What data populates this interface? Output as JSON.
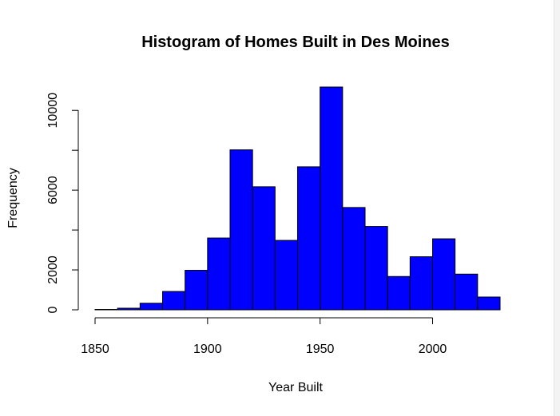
{
  "chart_data": {
    "type": "bar",
    "title": "Histogram of Homes Built in Des Moines",
    "xlabel": "Year Built",
    "ylabel": "Frequency",
    "bin_width": 10,
    "bins": [
      {
        "start": 1850,
        "end": 1860,
        "count": 20
      },
      {
        "start": 1860,
        "end": 1870,
        "count": 80
      },
      {
        "start": 1870,
        "end": 1880,
        "count": 330
      },
      {
        "start": 1880,
        "end": 1890,
        "count": 920
      },
      {
        "start": 1890,
        "end": 1900,
        "count": 1980
      },
      {
        "start": 1900,
        "end": 1910,
        "count": 3600
      },
      {
        "start": 1910,
        "end": 1920,
        "count": 8020
      },
      {
        "start": 1920,
        "end": 1930,
        "count": 6170
      },
      {
        "start": 1930,
        "end": 1940,
        "count": 3480
      },
      {
        "start": 1940,
        "end": 1950,
        "count": 7170
      },
      {
        "start": 1950,
        "end": 1960,
        "count": 11170
      },
      {
        "start": 1960,
        "end": 1970,
        "count": 5130
      },
      {
        "start": 1970,
        "end": 1980,
        "count": 4180
      },
      {
        "start": 1980,
        "end": 1990,
        "count": 1670
      },
      {
        "start": 1990,
        "end": 2000,
        "count": 2660
      },
      {
        "start": 2000,
        "end": 2010,
        "count": 3560
      },
      {
        "start": 2010,
        "end": 2020,
        "count": 1790
      },
      {
        "start": 2020,
        "end": 2030,
        "count": 640
      }
    ],
    "xlim": [
      1850,
      2030
    ],
    "ylim": [
      0,
      11170
    ],
    "x_ticks": [
      1850,
      1900,
      1950,
      2000
    ],
    "y_ticks": [
      0,
      2000,
      6000,
      10000
    ],
    "bar_color": "#0000ff",
    "bar_border_color": "#000000",
    "grid": false,
    "legend": "none"
  }
}
